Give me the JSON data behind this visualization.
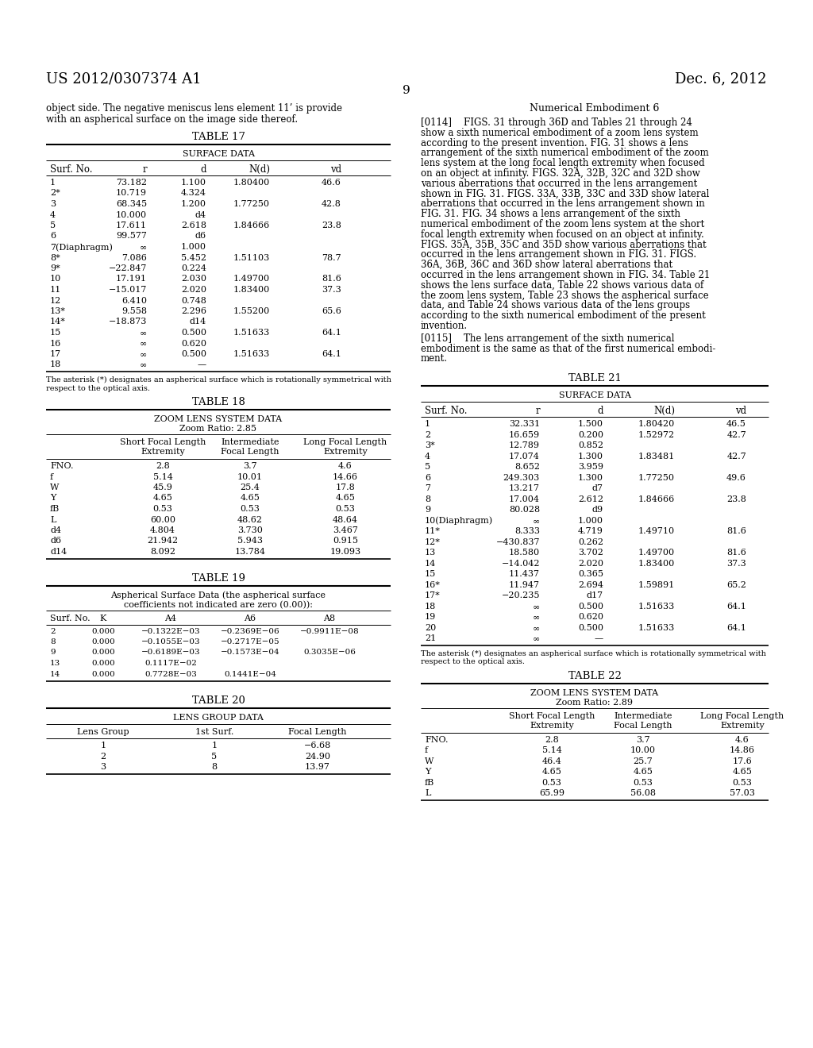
{
  "page_number": "9",
  "patent_number": "US 2012/0307374 A1",
  "patent_date": "Dec. 6, 2012",
  "left_text_line1": "object side. The negative meniscus lens element 11’ is provide",
  "left_text_line2": "with an aspherical surface on the image side thereof.",
  "footnote17": "The asterisk (*) designates an aspherical surface which is rotationally symmetrical with\nrespect to the optical axis.",
  "footnote21": "The asterisk (*) designates an aspherical surface which is rotationally symmetrical with\nrespect to the optical axis.",
  "right_heading": "Numerical Embodiment 6",
  "right_para_lines": [
    "[0114]    FIGS. 31 through 36D and Tables 21 through 24",
    "show a sixth numerical embodiment of a zoom lens system",
    "according to the present invention. FIG. 31 shows a lens",
    "arrangement of the sixth numerical embodiment of the zoom",
    "lens system at the long focal length extremity when focused",
    "on an object at infinity. FIGS. 32A, 32B, 32C and 32D show",
    "various aberrations that occurred in the lens arrangement",
    "shown in FIG. 31. FIGS. 33A, 33B, 33C and 33D show lateral",
    "aberrations that occurred in the lens arrangement shown in",
    "FIG. 31. FIG. 34 shows a lens arrangement of the sixth",
    "numerical embodiment of the zoom lens system at the short",
    "focal length extremity when focused on an object at infinity.",
    "FIGS. 35A, 35B, 35C and 35D show various aberrations that",
    "occurred in the lens arrangement shown in FIG. 31. FIGS.",
    "36A, 36B, 36C and 36D show lateral aberrations that",
    "occurred in the lens arrangement shown in FIG. 34. Table 21",
    "shows the lens surface data, Table 22 shows various data of",
    "the zoom lens system, Table 23 shows the aspherical surface",
    "data, and Table 24 shows various data of the lens groups",
    "according to the sixth numerical embodiment of the present",
    "invention."
  ],
  "right_para2_lines": [
    "[0115]    The lens arrangement of the sixth numerical",
    "embodiment is the same as that of the first numerical embodi-",
    "ment."
  ],
  "table17": {
    "title": "TABLE 17",
    "subtitle": "SURFACE DATA",
    "headers": [
      "Surf. No.",
      "r",
      "d",
      "N(d)",
      "vd"
    ],
    "rows": [
      [
        "1",
        "73.182",
        "1.100",
        "1.80400",
        "46.6"
      ],
      [
        "2*",
        "10.719",
        "4.324",
        "",
        ""
      ],
      [
        "3",
        "68.345",
        "1.200",
        "1.77250",
        "42.8"
      ],
      [
        "4",
        "10.000",
        "d4",
        "",
        ""
      ],
      [
        "5",
        "17.611",
        "2.618",
        "1.84666",
        "23.8"
      ],
      [
        "6",
        "99.577",
        "d6",
        "",
        ""
      ],
      [
        "7(Diaphragm)",
        "∞",
        "1.000",
        "",
        ""
      ],
      [
        "8*",
        "7.086",
        "5.452",
        "1.51103",
        "78.7"
      ],
      [
        "9*",
        "−22.847",
        "0.224",
        "",
        ""
      ],
      [
        "10",
        "17.191",
        "2.030",
        "1.49700",
        "81.6"
      ],
      [
        "11",
        "−15.017",
        "2.020",
        "1.83400",
        "37.3"
      ],
      [
        "12",
        "6.410",
        "0.748",
        "",
        ""
      ],
      [
        "13*",
        "9.558",
        "2.296",
        "1.55200",
        "65.6"
      ],
      [
        "14*",
        "−18.873",
        "d14",
        "",
        ""
      ],
      [
        "15",
        "∞",
        "0.500",
        "1.51633",
        "64.1"
      ],
      [
        "16",
        "∞",
        "0.620",
        "",
        ""
      ],
      [
        "17",
        "∞",
        "0.500",
        "1.51633",
        "64.1"
      ],
      [
        "18",
        "∞",
        "—",
        "",
        ""
      ]
    ]
  },
  "table18": {
    "title": "TABLE 18",
    "subtitle1": "ZOOM LENS SYSTEM DATA",
    "subtitle2": "Zoom Ratio: 2.85",
    "col_headers": [
      "",
      "Short Focal Length\nExtremity",
      "Intermediate\nFocal Length",
      "Long Focal Length\nExtremity"
    ],
    "rows": [
      [
        "FNO.",
        "2.8",
        "3.7",
        "4.6"
      ],
      [
        "f",
        "5.14",
        "10.01",
        "14.66"
      ],
      [
        "W",
        "45.9",
        "25.4",
        "17.8"
      ],
      [
        "Y",
        "4.65",
        "4.65",
        "4.65"
      ],
      [
        "fB",
        "0.53",
        "0.53",
        "0.53"
      ],
      [
        "L",
        "60.00",
        "48.62",
        "48.64"
      ],
      [
        "d4",
        "4.804",
        "3.730",
        "3.467"
      ],
      [
        "d6",
        "21.942",
        "5.943",
        "0.915"
      ],
      [
        "d14",
        "8.092",
        "13.784",
        "19.093"
      ]
    ]
  },
  "table19": {
    "title": "TABLE 19",
    "subtitle_lines": [
      "Aspherical Surface Data (the aspherical surface",
      "coefficients not indicated are zero (0.00)):"
    ],
    "headers": [
      "Surf. No.",
      "K",
      "A4",
      "A6",
      "A8"
    ],
    "rows": [
      [
        "2",
        "0.000",
        "−0.1322E−03",
        "−0.2369E−06",
        "−0.9911E−08"
      ],
      [
        "8",
        "0.000",
        "−0.1055E−03",
        "−0.2717E−05",
        ""
      ],
      [
        "9",
        "0.000",
        "−0.6189E−03",
        "−0.1573E−04",
        "0.3035E−06"
      ],
      [
        "13",
        "0.000",
        "0.1117E−02",
        "",
        ""
      ],
      [
        "14",
        "0.000",
        "0.7728E−03",
        "0.1441E−04",
        ""
      ]
    ]
  },
  "table20": {
    "title": "TABLE 20",
    "subtitle": "LENS GROUP DATA",
    "headers": [
      "Lens Group",
      "1st Surf.",
      "Focal Length"
    ],
    "rows": [
      [
        "1",
        "1",
        "−6.68"
      ],
      [
        "2",
        "5",
        "24.90"
      ],
      [
        "3",
        "8",
        "13.97"
      ]
    ]
  },
  "table21": {
    "title": "TABLE 21",
    "subtitle": "SURFACE DATA",
    "headers": [
      "Surf. No.",
      "r",
      "d",
      "N(d)",
      "vd"
    ],
    "rows": [
      [
        "1",
        "32.331",
        "1.500",
        "1.80420",
        "46.5"
      ],
      [
        "2",
        "16.659",
        "0.200",
        "1.52972",
        "42.7"
      ],
      [
        "3*",
        "12.789",
        "0.852",
        "",
        ""
      ],
      [
        "4",
        "17.074",
        "1.300",
        "1.83481",
        "42.7"
      ],
      [
        "5",
        "8.652",
        "3.959",
        "",
        ""
      ],
      [
        "6",
        "249.303",
        "1.300",
        "1.77250",
        "49.6"
      ],
      [
        "7",
        "13.217",
        "d7",
        "",
        ""
      ],
      [
        "8",
        "17.004",
        "2.612",
        "1.84666",
        "23.8"
      ],
      [
        "9",
        "80.028",
        "d9",
        "",
        ""
      ],
      [
        "10(Diaphragm)",
        "∞",
        "1.000",
        "",
        ""
      ],
      [
        "11*",
        "8.333",
        "4.719",
        "1.49710",
        "81.6"
      ],
      [
        "12*",
        "−430.837",
        "0.262",
        "",
        ""
      ],
      [
        "13",
        "18.580",
        "3.702",
        "1.49700",
        "81.6"
      ],
      [
        "14",
        "−14.042",
        "2.020",
        "1.83400",
        "37.3"
      ],
      [
        "15",
        "11.437",
        "0.365",
        "",
        ""
      ],
      [
        "16*",
        "11.947",
        "2.694",
        "1.59891",
        "65.2"
      ],
      [
        "17*",
        "−20.235",
        "d17",
        "",
        ""
      ],
      [
        "18",
        "∞",
        "0.500",
        "1.51633",
        "64.1"
      ],
      [
        "19",
        "∞",
        "0.620",
        "",
        ""
      ],
      [
        "20",
        "∞",
        "0.500",
        "1.51633",
        "64.1"
      ],
      [
        "21",
        "∞",
        "—",
        "",
        ""
      ]
    ]
  },
  "table22": {
    "title": "TABLE 22",
    "subtitle1": "ZOOM LENS SYSTEM DATA",
    "subtitle2": "Zoom Ratio: 2.89",
    "col_headers": [
      "",
      "Short Focal Length\nExtremity",
      "Intermediate\nFocal Length",
      "Long Focal Length\nExtremity"
    ],
    "rows": [
      [
        "FNO.",
        "2.8",
        "3.7",
        "4.6"
      ],
      [
        "f",
        "5.14",
        "10.00",
        "14.86"
      ],
      [
        "W",
        "46.4",
        "25.7",
        "17.6"
      ],
      [
        "Y",
        "4.65",
        "4.65",
        "4.65"
      ],
      [
        "fB",
        "0.53",
        "0.53",
        "0.53"
      ],
      [
        "L",
        "65.99",
        "56.08",
        "57.03"
      ]
    ]
  }
}
